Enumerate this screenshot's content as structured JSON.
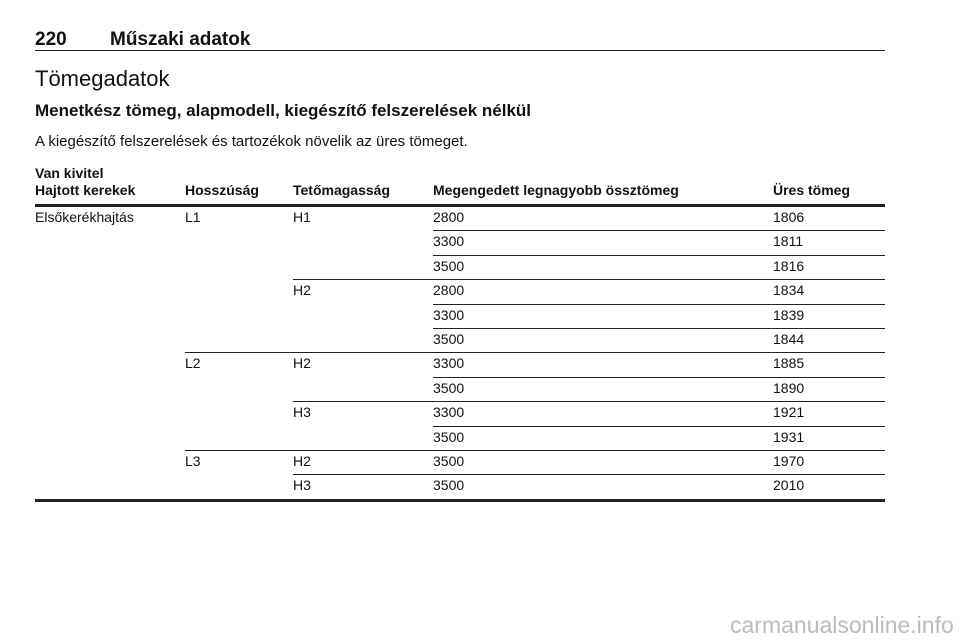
{
  "header": {
    "page_number": "220",
    "section": "Műszaki adatok"
  },
  "title": "Tömegadatok",
  "subtitle": "Menetkész tömeg, alapmodell, kiegészítő felszerelések nélkül",
  "note": "A kiegészítő felszerelések és tartozékok növelik az üres tömeget.",
  "table": {
    "caption": "Van kivitel",
    "columns": [
      "Hajtott kerekek",
      "Hosszúság",
      "Tetőmagasság",
      "Megengedett legnagyobb össztömeg",
      "Üres tömeg"
    ],
    "rows": [
      {
        "0": "Elsőkerékhajtás",
        "1": "L1",
        "2": "H1",
        "3": 2800,
        "4": 1806
      },
      {
        "3": 3300,
        "4": 1811
      },
      {
        "3": 3500,
        "4": 1816
      },
      {
        "2": "H2",
        "3": 2800,
        "4": 1834
      },
      {
        "3": 3300,
        "4": 1839
      },
      {
        "3": 3500,
        "4": 1844
      },
      {
        "1": "L2",
        "2": "H2",
        "3": 3300,
        "4": 1885
      },
      {
        "3": 3500,
        "4": 1890
      },
      {
        "2": "H3",
        "3": 3300,
        "4": 1921
      },
      {
        "3": 3500,
        "4": 1931
      },
      {
        "1": "L3",
        "2": "H2",
        "3": 3500,
        "4": 1970
      },
      {
        "2": "H3",
        "3": 3500,
        "4": 2010
      }
    ]
  },
  "watermark": "carmanualsonline.info"
}
